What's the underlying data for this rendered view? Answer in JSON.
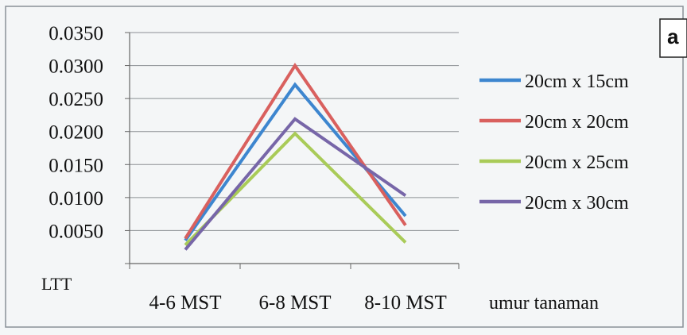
{
  "panel_label": "a",
  "colors": {
    "background": "#f4f6f7",
    "border": "#8a9097",
    "grid": "#8b8f94",
    "axis": "#666666"
  },
  "chart_data": {
    "type": "line",
    "categories": [
      "4-6 MST",
      "6-8 MST",
      "8-10 MST"
    ],
    "series": [
      {
        "name": "20cm x 15cm",
        "color": "#3d86cf",
        "values": [
          0.0035,
          0.0271,
          0.0072
        ]
      },
      {
        "name": "20cm x 20cm",
        "color": "#d9605e",
        "values": [
          0.0038,
          0.03,
          0.0058
        ]
      },
      {
        "name": "20cm x 25cm",
        "color": "#a9cb58",
        "values": [
          0.0028,
          0.0197,
          0.0032
        ]
      },
      {
        "name": "20cm x 30cm",
        "color": "#7766a8",
        "values": [
          0.0021,
          0.0219,
          0.0103
        ]
      }
    ],
    "ylabel": "LTT",
    "xlabel": "umur  tanaman",
    "ylim": [
      0,
      0.035
    ],
    "yticks": [
      "0.0350",
      "0.0300",
      "0.0250",
      "0.0200",
      "0.0150",
      "0.0100",
      "0.0050"
    ],
    "ytick_values": [
      0.035,
      0.03,
      0.025,
      0.02,
      0.015,
      0.01,
      0.005
    ],
    "grid": true,
    "legend_position": "right"
  }
}
